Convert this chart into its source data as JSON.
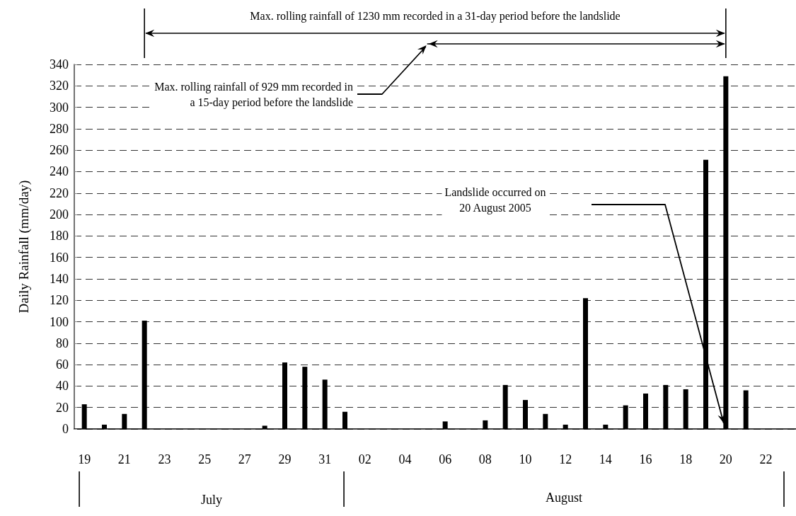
{
  "chart_data": {
    "type": "bar",
    "ylabel": "Daily Rainfall (mm/day)",
    "categories": [
      "19",
      null,
      "21",
      null,
      "23",
      null,
      "25",
      null,
      "27",
      null,
      "29",
      null,
      "31",
      null,
      "02",
      null,
      "04",
      null,
      "06",
      null,
      "08",
      null,
      "10",
      null,
      "12",
      null,
      "14",
      null,
      "16",
      null,
      "18",
      null,
      "20",
      null,
      "22",
      null
    ],
    "values": [
      23,
      4,
      14,
      101,
      0,
      0,
      0,
      0,
      0,
      3,
      62,
      58,
      46,
      16,
      0,
      0,
      0,
      0,
      7,
      0,
      8,
      41,
      27,
      14,
      4,
      122,
      4,
      22,
      33,
      41,
      37,
      251,
      329,
      36,
      0,
      0
    ],
    "color": "#000000",
    "ylim": [
      0,
      340
    ],
    "yticks": [
      0,
      20,
      40,
      60,
      80,
      100,
      120,
      140,
      160,
      180,
      200,
      220,
      240,
      260,
      280,
      300,
      320,
      340
    ],
    "grid": "y",
    "annotations": [
      "Max. rolling rainfall of 1230 mm recorded in a 31-day period before the landslide",
      "Max. rolling rainfall of 929 mm recorded in\na 15-day period before the landslide",
      "Landslide occurred on\n20 August 2005",
      "July",
      "August"
    ]
  }
}
